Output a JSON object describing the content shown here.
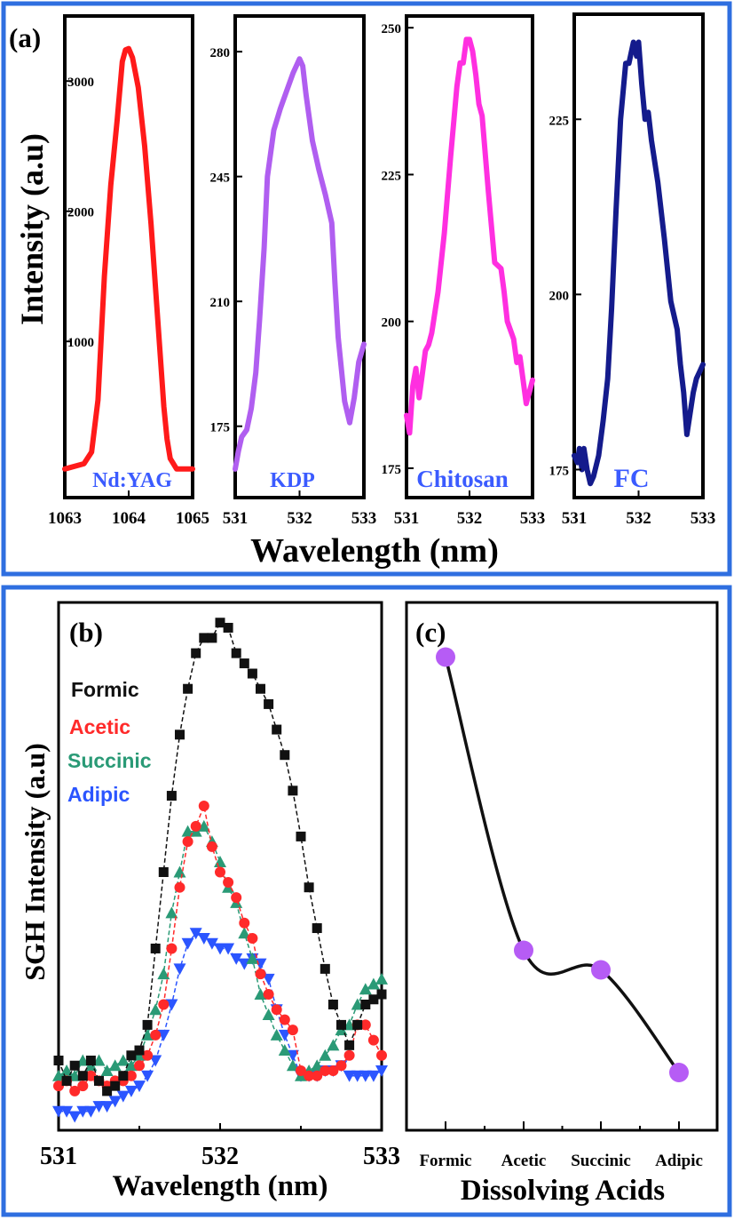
{
  "figure": {
    "panel_a_label": "(a)",
    "panel_b_label": "(b)",
    "panel_c_label": "(c)",
    "frame_color": "#2f6fe0"
  },
  "chart_data": [
    {
      "type": "line",
      "panel": "a",
      "ylabel": "Intensity (a.u)",
      "xlabel": "Wavelength (nm)",
      "subplots": [
        {
          "name": "Nd:YAG",
          "color": "#ff1a1a",
          "label_color": "#3b5bff",
          "xlim": [
            1063,
            1065
          ],
          "ylim": [
            -200,
            3500
          ],
          "xticks": [
            1063,
            1064,
            1065
          ],
          "yticks": [
            1000,
            2000,
            3000
          ],
          "x": [
            1063.0,
            1063.3,
            1063.42,
            1063.52,
            1063.62,
            1063.72,
            1063.82,
            1063.9,
            1063.95,
            1064.0,
            1064.06,
            1064.15,
            1064.25,
            1064.35,
            1064.45,
            1064.55,
            1064.6,
            1064.65,
            1064.75,
            1065.0
          ],
          "y": [
            20,
            60,
            150,
            550,
            1500,
            2200,
            2700,
            3150,
            3240,
            3250,
            3180,
            2950,
            2500,
            1900,
            1200,
            500,
            250,
            100,
            20,
            20
          ]
        },
        {
          "name": "KDP",
          "color": "#b05ef0",
          "label_color": "#3b5bff",
          "xlim": [
            531,
            533
          ],
          "ylim": [
            155,
            290
          ],
          "xticks": [
            531,
            532,
            533
          ],
          "yticks": [
            175,
            210,
            245,
            280
          ],
          "x": [
            531.0,
            531.05,
            531.1,
            531.18,
            531.25,
            531.32,
            531.38,
            531.45,
            531.5,
            531.6,
            531.7,
            531.8,
            531.9,
            532.0,
            532.05,
            532.1,
            532.2,
            532.3,
            532.4,
            532.5,
            532.55,
            532.6,
            532.7,
            532.78,
            532.85,
            532.92,
            533.0
          ],
          "y": [
            163,
            168,
            172,
            174,
            180,
            190,
            205,
            225,
            245,
            258,
            264,
            269,
            274,
            278,
            276,
            268,
            255,
            247,
            240,
            232,
            215,
            200,
            182,
            176,
            183,
            193,
            198
          ]
        },
        {
          "name": "Chitosan",
          "color": "#ff2fe0",
          "label_color": "#3b5bff",
          "xlim": [
            531,
            533
          ],
          "ylim": [
            170,
            252
          ],
          "xticks": [
            531,
            532,
            533
          ],
          "yticks": [
            175,
            200,
            225,
            250
          ],
          "x": [
            531.0,
            531.05,
            531.1,
            531.15,
            531.2,
            531.25,
            531.3,
            531.35,
            531.4,
            531.5,
            531.6,
            531.7,
            531.8,
            531.85,
            531.9,
            531.95,
            532.0,
            532.05,
            532.1,
            532.15,
            532.2,
            532.3,
            532.4,
            532.5,
            532.55,
            532.6,
            532.7,
            532.75,
            532.8,
            532.85,
            532.9,
            532.95,
            533.0
          ],
          "y": [
            184,
            181,
            189,
            192,
            187,
            191,
            195,
            196,
            198,
            205,
            215,
            228,
            240,
            244,
            244,
            248,
            248,
            246,
            242,
            237,
            235,
            222,
            210,
            209,
            205,
            200,
            197,
            193,
            194,
            190,
            186,
            188,
            190
          ]
        },
        {
          "name": "FC",
          "color": "#141b8c",
          "label_color": "#3b5bff",
          "xlim": [
            531,
            533
          ],
          "ylim": [
            171,
            240
          ],
          "xticks": [
            531,
            532,
            533
          ],
          "yticks": [
            175,
            200,
            225
          ],
          "x": [
            531.0,
            531.05,
            531.08,
            531.12,
            531.15,
            531.2,
            531.25,
            531.3,
            531.38,
            531.45,
            531.52,
            531.58,
            531.65,
            531.72,
            531.8,
            531.85,
            531.92,
            531.97,
            532.0,
            532.05,
            532.1,
            532.15,
            532.2,
            532.3,
            532.4,
            532.5,
            532.6,
            532.65,
            532.7,
            532.75,
            532.8,
            532.85,
            532.9,
            532.95,
            533.0
          ],
          "y": [
            177,
            176,
            178,
            175,
            178,
            175,
            173,
            174,
            177,
            182,
            188,
            198,
            212,
            225,
            233,
            233,
            236,
            234,
            236,
            230,
            225,
            226,
            222,
            216,
            208,
            199,
            195,
            190,
            186,
            180,
            183,
            186,
            188,
            189,
            190
          ]
        }
      ]
    },
    {
      "type": "scatter",
      "panel": "b",
      "ylabel": "SGH Intensity (a.u)",
      "xlabel": "Wavelength (nm)",
      "xlim": [
        531,
        533
      ],
      "ylim": [
        0,
        100
      ],
      "xticks": [
        531,
        532,
        533
      ],
      "legend": [
        "Formic",
        "Acetic",
        "Succinic",
        "Adipic"
      ],
      "series": [
        {
          "name": "Formic",
          "marker": "square",
          "color": "#111111",
          "x": [
            531.0,
            531.05,
            531.1,
            531.15,
            531.2,
            531.25,
            531.3,
            531.35,
            531.4,
            531.45,
            531.5,
            531.55,
            531.6,
            531.65,
            531.7,
            531.75,
            531.8,
            531.85,
            531.9,
            531.95,
            532.0,
            532.05,
            532.1,
            532.15,
            532.2,
            532.25,
            532.3,
            532.35,
            532.4,
            532.45,
            532.5,
            532.55,
            532.6,
            532.65,
            532.7,
            532.75,
            532.8,
            532.85,
            532.9,
            532.95,
            533.0
          ],
          "y": [
            13,
            9,
            12,
            10,
            13,
            9,
            7,
            8,
            10,
            14,
            15,
            20,
            35,
            50,
            65,
            77,
            86,
            93,
            96,
            96,
            99,
            98,
            93,
            91,
            89,
            86,
            83,
            78,
            73,
            66,
            57,
            47,
            39,
            31,
            24,
            20,
            16,
            20,
            24,
            25,
            26
          ]
        },
        {
          "name": "Acetic",
          "marker": "circle",
          "color": "#ff2a2a",
          "x": [
            531.0,
            531.05,
            531.1,
            531.15,
            531.2,
            531.25,
            531.3,
            531.35,
            531.4,
            531.45,
            531.5,
            531.55,
            531.6,
            531.65,
            531.7,
            531.75,
            531.8,
            531.85,
            531.9,
            531.95,
            532.0,
            532.05,
            532.1,
            532.15,
            532.2,
            532.25,
            532.3,
            532.35,
            532.4,
            532.45,
            532.5,
            532.55,
            532.6,
            532.65,
            532.7,
            532.75,
            532.8,
            532.85,
            532.9,
            532.95,
            533.0
          ],
          "y": [
            8,
            9,
            7,
            8,
            10,
            9,
            8,
            9,
            9,
            10,
            12,
            14,
            18,
            24,
            35,
            47,
            56,
            59,
            63,
            55,
            50,
            48,
            45,
            40,
            37,
            30,
            26,
            23,
            21,
            19,
            11,
            10,
            10,
            11,
            11,
            12,
            14,
            20,
            20,
            17,
            14
          ]
        },
        {
          "name": "Succinic",
          "marker": "triangle-up",
          "color": "#2a9a76",
          "x": [
            531.0,
            531.05,
            531.1,
            531.15,
            531.2,
            531.25,
            531.3,
            531.35,
            531.4,
            531.45,
            531.5,
            531.55,
            531.6,
            531.65,
            531.7,
            531.75,
            531.8,
            531.85,
            531.9,
            531.95,
            532.0,
            532.05,
            532.1,
            532.15,
            532.2,
            532.25,
            532.3,
            532.35,
            532.4,
            532.45,
            532.5,
            532.55,
            532.6,
            532.65,
            532.7,
            532.75,
            532.8,
            532.85,
            532.9,
            532.95,
            533.0
          ],
          "y": [
            10,
            11,
            10,
            13,
            12,
            13,
            11,
            12,
            13,
            12,
            14,
            18,
            23,
            30,
            42,
            50,
            58,
            58,
            59,
            56,
            52,
            47,
            44,
            38,
            33,
            26,
            22,
            18,
            15,
            12,
            10,
            11,
            12,
            14,
            16,
            19,
            20,
            24,
            27,
            28,
            29
          ]
        },
        {
          "name": "Adipic",
          "marker": "triangle-down",
          "color": "#2b55ff",
          "x": [
            531.0,
            531.05,
            531.1,
            531.15,
            531.2,
            531.25,
            531.3,
            531.35,
            531.4,
            531.45,
            531.5,
            531.55,
            531.6,
            531.65,
            531.7,
            531.75,
            531.8,
            531.85,
            531.9,
            531.95,
            532.0,
            532.05,
            532.1,
            532.15,
            532.2,
            532.25,
            532.3,
            532.35,
            532.4,
            532.45,
            532.5,
            532.55,
            532.6,
            532.65,
            532.7,
            532.75,
            532.8,
            532.85,
            532.9,
            532.95,
            533.0
          ],
          "y": [
            3,
            3,
            2,
            3,
            3,
            4,
            4,
            5,
            6,
            7,
            8,
            10,
            13,
            18,
            24,
            31,
            36,
            38,
            37,
            36,
            35,
            35,
            33,
            32,
            33,
            32,
            29,
            23,
            18,
            14,
            10,
            10,
            10,
            11,
            11,
            12,
            10,
            10,
            10,
            10,
            11
          ]
        }
      ]
    },
    {
      "type": "line",
      "panel": "c",
      "xlabel": "Dissolving Acids",
      "categories": [
        "Formic",
        "Acetic",
        "Succinic",
        "Adipic"
      ],
      "values": [
        100,
        40,
        36,
        15
      ],
      "ylim": [
        5,
        105
      ],
      "line_color": "#111111",
      "marker_color": "#b65cf5"
    }
  ]
}
